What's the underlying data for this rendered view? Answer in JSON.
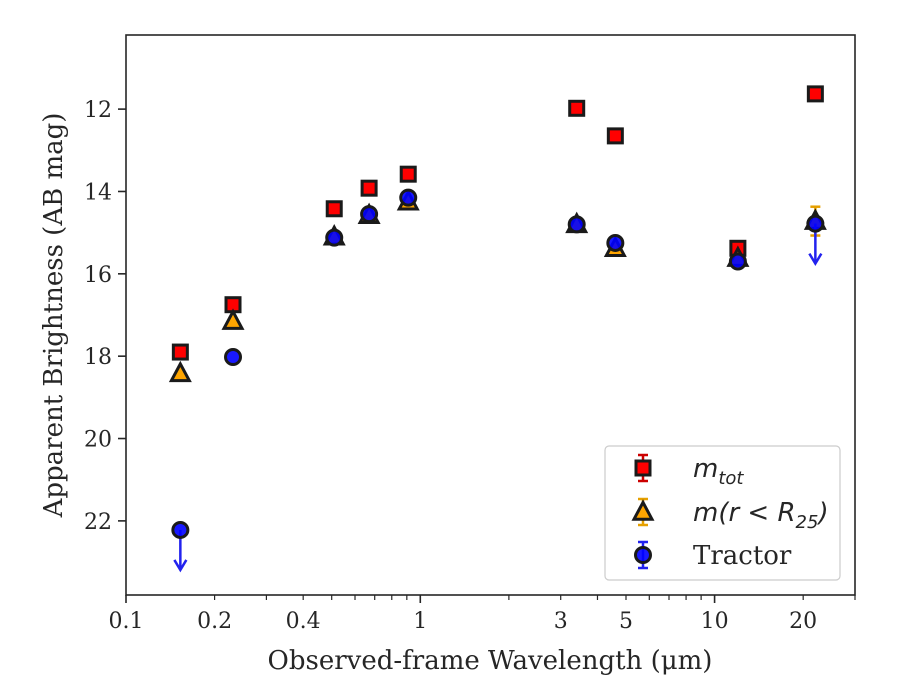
{
  "chart_data": {
    "type": "scatter",
    "xlabel": "Observed-frame Wavelength (μm)",
    "ylabel": "Apparent Brightness (AB mag)",
    "x_scale": "log",
    "xlim": [
      0.1,
      30
    ],
    "ylim": [
      23.8,
      10.2
    ],
    "y_inverted": true,
    "grid": false,
    "legend_position": "bottom-right",
    "x_tick_labels": [
      {
        "value": 0.1,
        "label": "0.1"
      },
      {
        "value": 0.2,
        "label": "0.2"
      },
      {
        "value": 0.4,
        "label": "0.4"
      },
      {
        "value": 1,
        "label": "1"
      },
      {
        "value": 3,
        "label": "3"
      },
      {
        "value": 5,
        "label": "5"
      },
      {
        "value": 10,
        "label": "10"
      },
      {
        "value": 20,
        "label": "20"
      }
    ],
    "y_ticks": [
      12,
      14,
      16,
      18,
      20,
      22
    ],
    "series": [
      {
        "name": "m_tot",
        "legend_main": "m",
        "legend_sub": "tot",
        "legend_rest": "",
        "marker": "square",
        "color": "#ff0000",
        "edge_color": "#1a1a1a",
        "error_color": "#cc0000",
        "points": [
          {
            "x": 0.153,
            "y": 17.9
          },
          {
            "x": 0.231,
            "y": 16.75
          },
          {
            "x": 0.51,
            "y": 14.42
          },
          {
            "x": 0.67,
            "y": 13.92
          },
          {
            "x": 0.91,
            "y": 13.58
          },
          {
            "x": 3.4,
            "y": 11.98
          },
          {
            "x": 4.6,
            "y": 12.65
          },
          {
            "x": 12.0,
            "y": 15.38
          },
          {
            "x": 22.0,
            "y": 11.63
          }
        ]
      },
      {
        "name": "m(r < R_25)",
        "legend_main": "m(r < R",
        "legend_sub": "25",
        "legend_rest": ")",
        "marker": "triangle",
        "color": "#ffa500",
        "edge_color": "#1a1a1a",
        "error_color": "#e6a000",
        "points": [
          {
            "x": 0.153,
            "y": 18.42
          },
          {
            "x": 0.231,
            "y": 17.15
          },
          {
            "x": 0.51,
            "y": 15.1
          },
          {
            "x": 0.67,
            "y": 14.58
          },
          {
            "x": 0.91,
            "y": 14.25
          },
          {
            "x": 3.4,
            "y": 14.8
          },
          {
            "x": 4.6,
            "y": 15.38
          },
          {
            "x": 12.0,
            "y": 15.62
          },
          {
            "x": 22.0,
            "y": 14.72,
            "yerr": 0.35
          }
        ]
      },
      {
        "name": "Tractor",
        "legend_main": "Tractor",
        "legend_sub": "",
        "legend_rest": "",
        "marker": "circle",
        "color": "#0000ff",
        "edge_color": "#1a1a1a",
        "error_color": "#2222ee",
        "points": [
          {
            "x": 0.153,
            "y": 22.22,
            "upper_limit": true
          },
          {
            "x": 0.231,
            "y": 18.02
          },
          {
            "x": 0.51,
            "y": 15.12
          },
          {
            "x": 0.67,
            "y": 14.55
          },
          {
            "x": 0.91,
            "y": 14.15
          },
          {
            "x": 3.4,
            "y": 14.8
          },
          {
            "x": 4.6,
            "y": 15.25
          },
          {
            "x": 12.0,
            "y": 15.7
          },
          {
            "x": 22.0,
            "y": 14.78,
            "upper_limit": true
          }
        ]
      }
    ]
  }
}
